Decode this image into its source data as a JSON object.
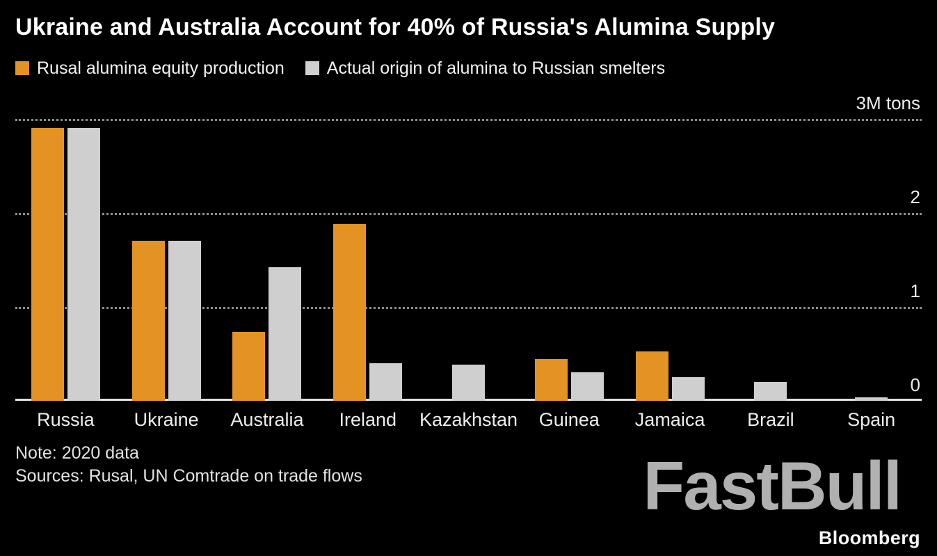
{
  "title": "Ukraine and Australia Account for 40% of Russia's Alumina Supply",
  "legend": [
    {
      "label": "Rusal alumina equity production",
      "color": "#E39323"
    },
    {
      "label": "Actual origin of alumina to Russian smelters",
      "color": "#CFCFCF"
    }
  ],
  "notes": {
    "note": "Note: 2020 data",
    "sources": "Sources: Rusal, UN Comtrade on trade flows"
  },
  "branding": "Bloomberg",
  "watermark": "FastBull",
  "colors": {
    "background": "#000000",
    "orange": "#E39323",
    "gray": "#CFCFCF",
    "gridline": "#8C8C8C",
    "baseline": "#E3E3E3",
    "text": "#FFFFFF"
  },
  "chart_data": {
    "type": "bar",
    "title": "Ukraine and Australia Account for 40% of Russia's Alumina Supply",
    "unit": "M tons",
    "categories": [
      "Russia",
      "Ukraine",
      "Australia",
      "Ireland",
      "Kazakhstan",
      "Guinea",
      "Jamaica",
      "Brazil",
      "Spain"
    ],
    "series": [
      {
        "name": "Rusal alumina equity production",
        "color": "#E39323",
        "values": [
          2.9,
          1.7,
          0.73,
          1.88,
          0,
          0.44,
          0.52,
          0,
          0
        ]
      },
      {
        "name": "Actual origin of alumina to Russian smelters",
        "color": "#CFCFCF",
        "values": [
          2.9,
          1.7,
          1.42,
          0.4,
          0.38,
          0.3,
          0.25,
          0.2,
          0.03
        ]
      }
    ],
    "ylim": [
      0,
      3
    ],
    "yticks": [
      {
        "label": "3M tons",
        "value": 3
      },
      {
        "label": "2",
        "value": 2
      },
      {
        "label": "1",
        "value": 1
      },
      {
        "label": "0",
        "value": 0
      }
    ],
    "gridlines": [
      3,
      2,
      1
    ],
    "grid": true,
    "legend_position": "top"
  }
}
